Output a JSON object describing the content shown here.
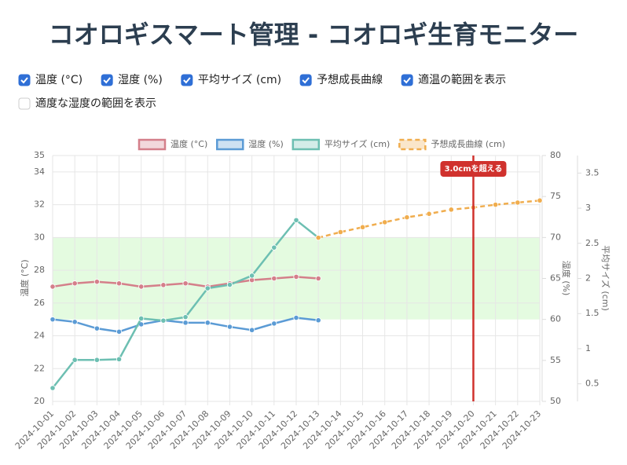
{
  "title": "コオロギスマート管理 - コオロギ生育モニター",
  "controls": [
    {
      "label": "温度 (°C)",
      "checked": true
    },
    {
      "label": "湿度 (%)",
      "checked": true
    },
    {
      "label": "平均サイズ (cm)",
      "checked": true
    },
    {
      "label": "予想成長曲線",
      "checked": true
    },
    {
      "label": "適温の範囲を表示",
      "checked": true
    },
    {
      "label": "適度な湿度の範囲を表示",
      "checked": false
    }
  ],
  "chart_data": {
    "type": "line",
    "x": [
      "2024-10-01",
      "2024-10-02",
      "2024-10-03",
      "2024-10-04",
      "2024-10-05",
      "2024-10-06",
      "2024-10-07",
      "2024-10-08",
      "2024-10-09",
      "2024-10-10",
      "2024-10-11",
      "2024-10-12",
      "2024-10-13",
      "2024-10-14",
      "2024-10-15",
      "2024-10-16",
      "2024-10-17",
      "2024-10-18",
      "2024-10-19",
      "2024-10-20",
      "2024-10-21",
      "2024-10-22",
      "2024-10-23"
    ],
    "ylabel": "温度 (°C)",
    "y2label": "湿度 (%)",
    "y3label": "平均サイズ (cm)",
    "ylim": [
      20,
      35
    ],
    "yticks": [
      20,
      22,
      24,
      26,
      28,
      30,
      32,
      34,
      35
    ],
    "y2lim": [
      50,
      80
    ],
    "y2ticks": [
      50,
      55,
      60,
      65,
      70,
      75,
      80
    ],
    "y3lim": [
      0.25,
      3.75
    ],
    "y3ticks": [
      0.5,
      1.0,
      1.5,
      2.0,
      2.5,
      3.0,
      3.5
    ],
    "grid": true,
    "legend": "top",
    "series": [
      {
        "name": "温度 (°C)",
        "color": "#d47f8a",
        "axis": "y",
        "dashed": false,
        "values": [
          27.0,
          27.2,
          27.3,
          27.2,
          27.0,
          27.1,
          27.2,
          27.0,
          27.2,
          27.4,
          27.5,
          27.6,
          27.5,
          null,
          null,
          null,
          null,
          null,
          null,
          null,
          null,
          null,
          null
        ]
      },
      {
        "name": "湿度 (%)",
        "color": "#5b9bd5",
        "axis": "y2",
        "dashed": false,
        "values": [
          60.0,
          59.7,
          58.9,
          58.5,
          59.4,
          59.9,
          59.6,
          59.6,
          59.1,
          58.7,
          59.5,
          60.2,
          59.9,
          null,
          null,
          null,
          null,
          null,
          null,
          null,
          null,
          null,
          null
        ]
      },
      {
        "name": "平均サイズ (cm)",
        "color": "#6dbfb2",
        "axis": "y3",
        "dashed": false,
        "values": [
          0.44,
          0.84,
          0.84,
          0.85,
          1.43,
          1.4,
          1.45,
          1.86,
          1.91,
          2.04,
          2.44,
          2.83,
          2.58,
          null,
          null,
          null,
          null,
          null,
          null,
          null,
          null,
          null,
          null
        ]
      },
      {
        "name": "予想成長曲線 (cm)",
        "color": "#f0ad4e",
        "axis": "y3",
        "dashed": true,
        "values": [
          null,
          null,
          null,
          null,
          null,
          null,
          null,
          null,
          null,
          null,
          null,
          null,
          2.58,
          2.66,
          2.73,
          2.8,
          2.87,
          2.92,
          2.98,
          3.01,
          3.05,
          3.08,
          3.11
        ]
      }
    ],
    "band": {
      "range": [
        25,
        30
      ],
      "color": "#ddfad8"
    },
    "annotation": {
      "x": "2024-10-20",
      "label": "3.0cmを超える",
      "color": "#d0312d"
    }
  }
}
